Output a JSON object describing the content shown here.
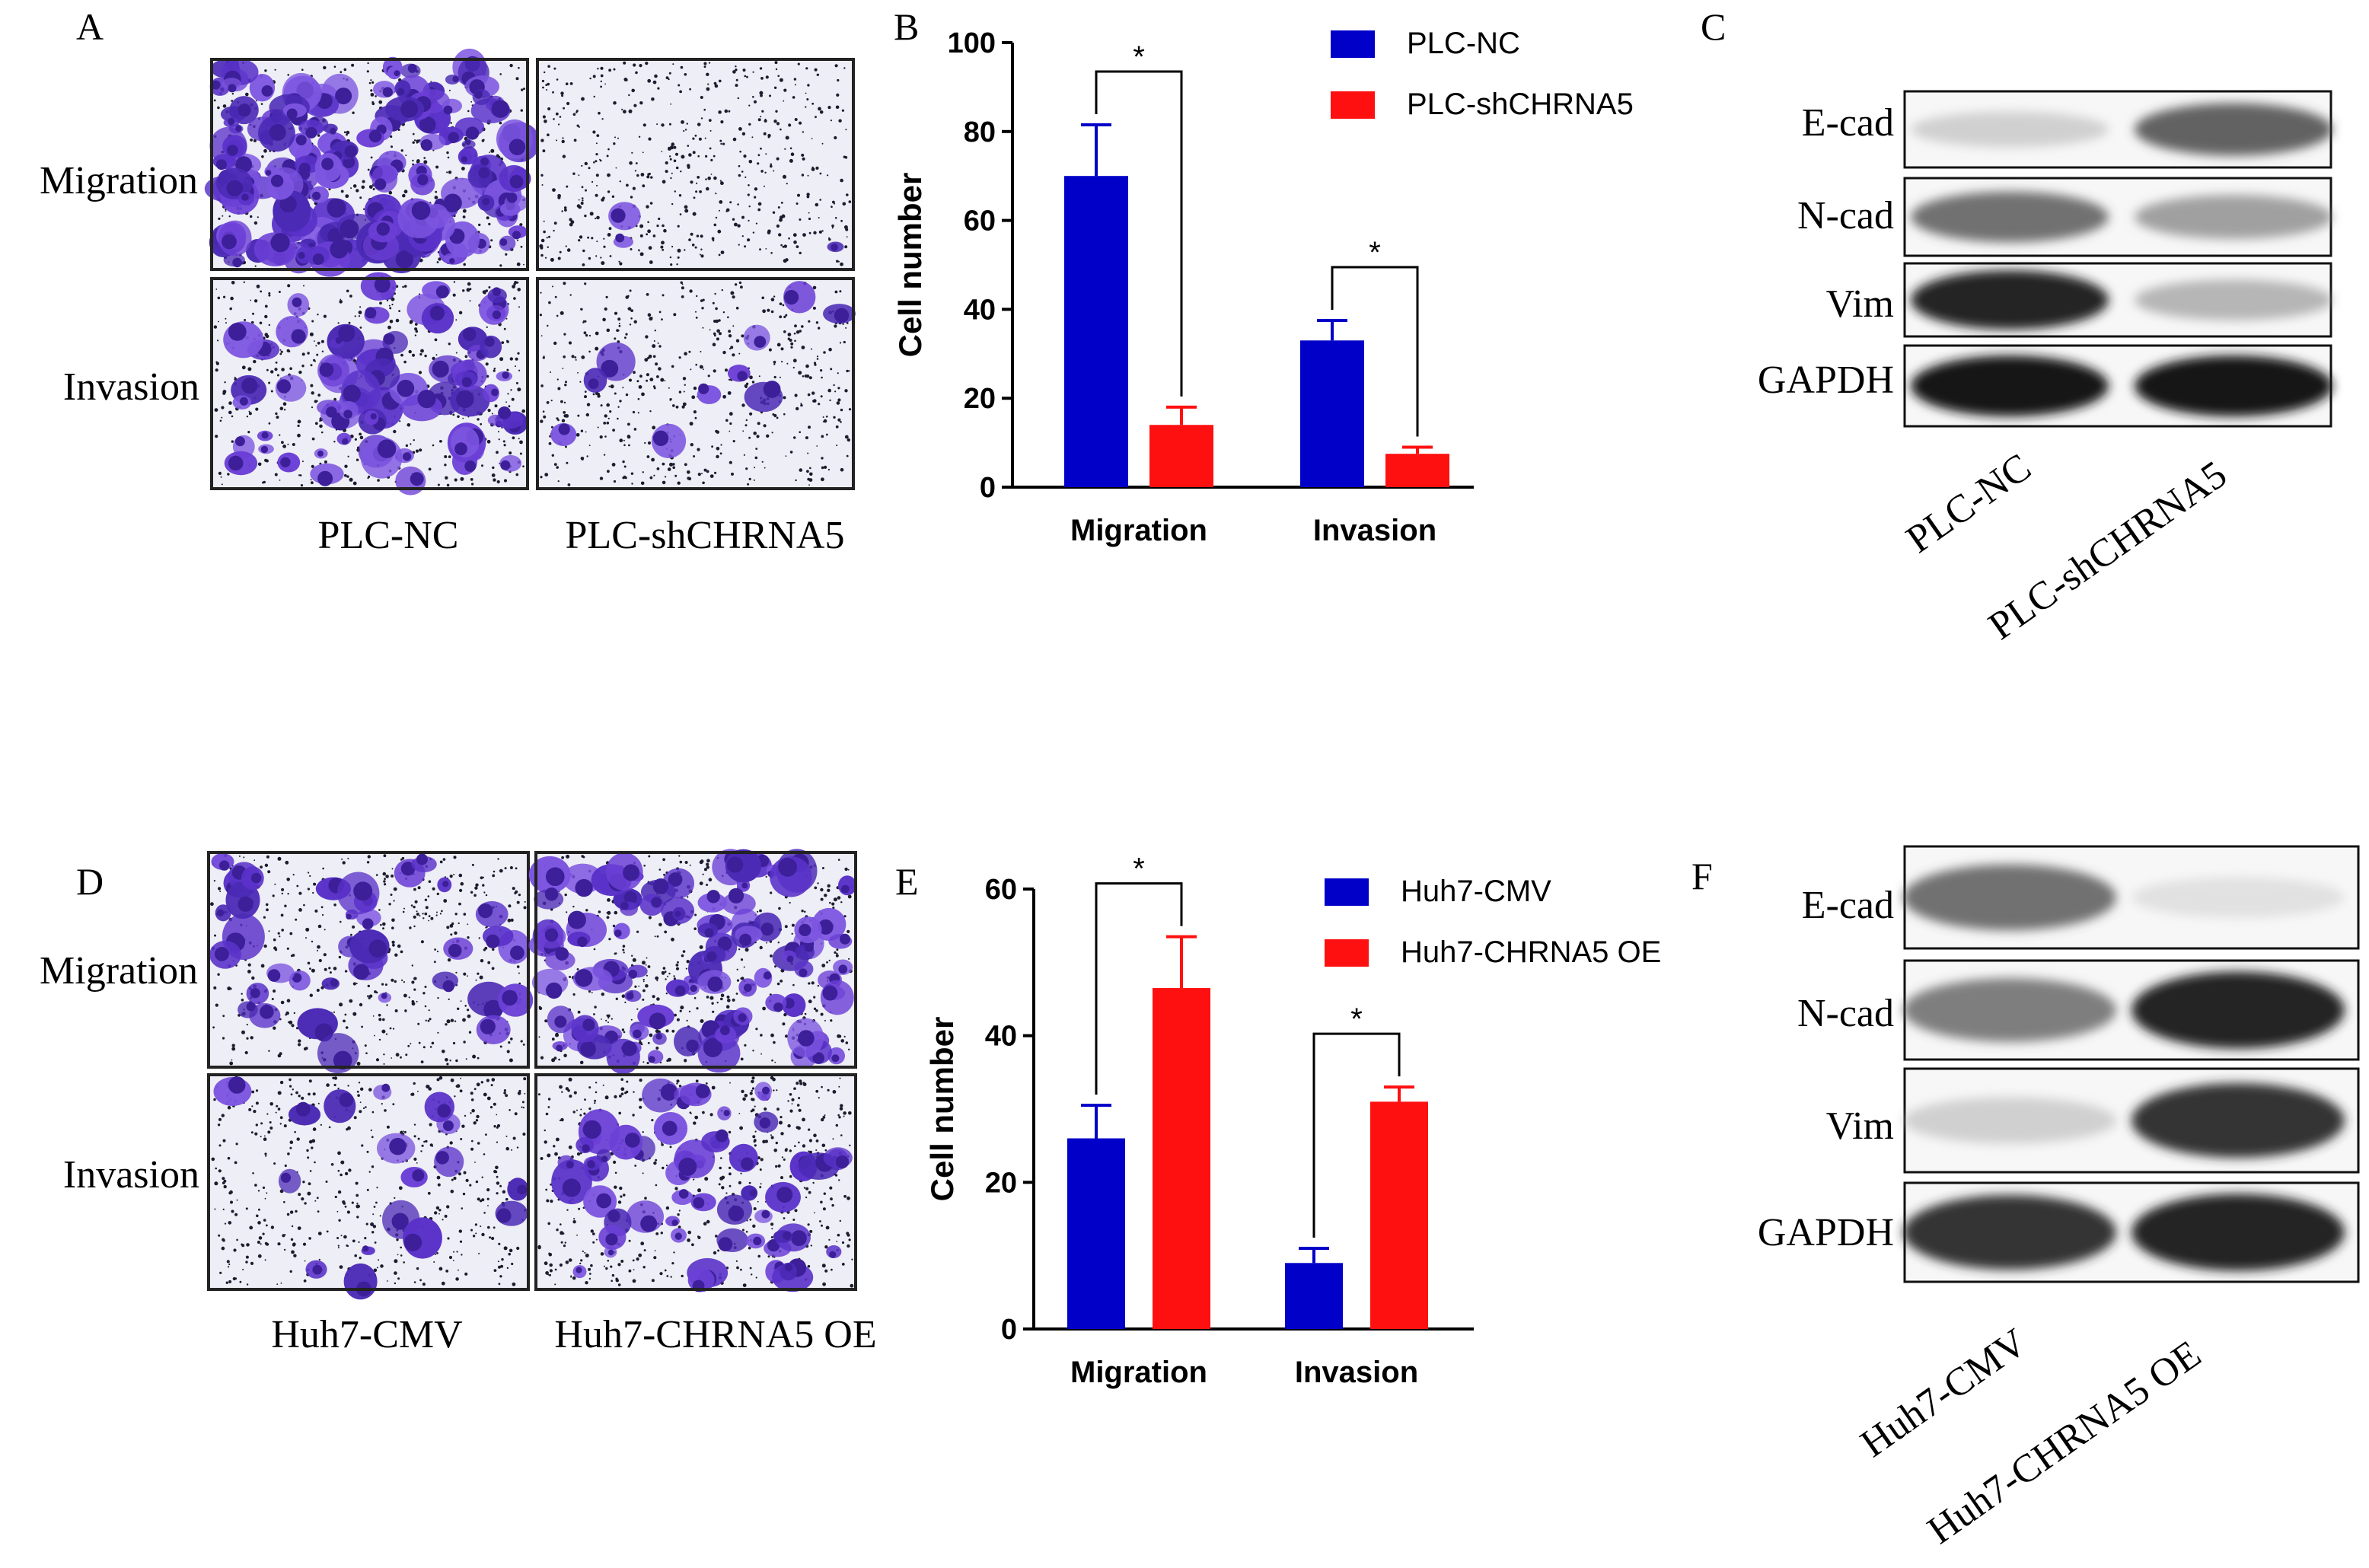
{
  "panel_letters": [
    "A",
    "B",
    "C",
    "D",
    "E",
    "F"
  ],
  "top": {
    "row_labels": [
      "Migration",
      "Invasion"
    ],
    "micrograph_groups": [
      "PLC-NC",
      "PLC-shCHRNA5"
    ],
    "blot_rows": [
      "E-cad",
      "N-cad",
      "Vim",
      "GAPDH"
    ],
    "blot_groups": [
      "PLC-NC",
      "PLC-shCHRNA5"
    ]
  },
  "bottom": {
    "row_labels": [
      "Migration",
      "Invasion"
    ],
    "micrograph_groups": [
      "Huh7-CMV",
      "Huh7-CHRNA5 OE"
    ],
    "blot_rows": [
      "E-cad",
      "N-cad",
      "Vim",
      "GAPDH"
    ],
    "blot_groups": [
      "Huh7-CMV",
      "Huh7-CHRNA5 OE"
    ]
  },
  "colors": {
    "series1": "#0000c8",
    "series2": "#ff1010",
    "stain": "#6a3fd8",
    "ink": "#000000"
  },
  "chart_data": [
    {
      "type": "bar",
      "panel": "B",
      "ylabel": "Cell number",
      "categories": [
        "Migration",
        "Invasion"
      ],
      "ylim": [
        0,
        100
      ],
      "yticks": [
        0,
        20,
        40,
        60,
        80,
        100
      ],
      "legend_position": "top-right",
      "series": [
        {
          "name": "PLC-NC",
          "values": [
            70,
            33
          ],
          "errors": [
            11.5,
            4.5
          ]
        },
        {
          "name": "PLC-shCHRNA5",
          "values": [
            14,
            7.5
          ],
          "errors": [
            4,
            1.5
          ]
        }
      ],
      "significance": [
        "*",
        "*"
      ]
    },
    {
      "type": "bar",
      "panel": "E",
      "ylabel": "Cell number",
      "categories": [
        "Migration",
        "Invasion"
      ],
      "ylim": [
        0,
        60
      ],
      "yticks": [
        0,
        20,
        40,
        60
      ],
      "legend_position": "top-right",
      "series": [
        {
          "name": "Huh7-CMV",
          "values": [
            26,
            9
          ],
          "errors": [
            4.5,
            2
          ]
        },
        {
          "name": "Huh7-CHRNA5 OE",
          "values": [
            46.5,
            31
          ],
          "errors": [
            7,
            2
          ]
        }
      ],
      "significance": [
        "*",
        "*"
      ]
    }
  ],
  "micrograph_density": {
    "top": {
      "migration": [
        0.95,
        0.02
      ],
      "invasion": [
        0.4,
        0.06
      ]
    },
    "bottom": {
      "migration": [
        0.22,
        0.55
      ],
      "invasion": [
        0.1,
        0.32
      ]
    }
  },
  "blot_intensity": {
    "top": [
      [
        0.25,
        0.75
      ],
      [
        0.7,
        0.5
      ],
      [
        0.95,
        0.4
      ],
      [
        1.0,
        1.0
      ]
    ],
    "bottom": [
      [
        0.7,
        0.12
      ],
      [
        0.65,
        0.95
      ],
      [
        0.25,
        0.9
      ],
      [
        0.9,
        0.95
      ]
    ]
  }
}
